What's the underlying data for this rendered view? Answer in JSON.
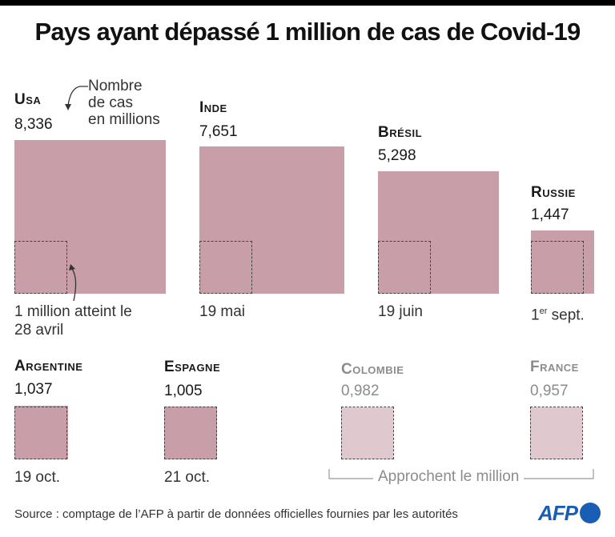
{
  "title": "Pays ayant dépassé 1 million de cas de Covid-19",
  "colors": {
    "box": "#c89ea8",
    "box_light": "#e0c9ce",
    "accent_logo": "#1a5db5"
  },
  "annotations": {
    "unit_note_line1": "Nombre",
    "unit_note_line2": "de cas",
    "unit_note_line3": "en millions",
    "million_note_line1": "1 million atteint le",
    "million_note_line2": "28 avril",
    "approaching": "Approchent le million"
  },
  "chart_data": {
    "type": "proportional-area-squares",
    "title": "Pays ayant dépassé 1 million de cas de Covid-19",
    "unit": "Nombre de cas en millions",
    "reference_value": 1,
    "countries": [
      {
        "name": "Usa",
        "value": 8.336,
        "label": "8,336",
        "date": "28 avril",
        "status": "passed"
      },
      {
        "name": "Inde",
        "value": 7.651,
        "label": "7,651",
        "date": "19 mai",
        "status": "passed"
      },
      {
        "name": "Brésil",
        "value": 5.298,
        "label": "5,298",
        "date": "19 juin",
        "status": "passed"
      },
      {
        "name": "Russie",
        "value": 1.447,
        "label": "1,447",
        "date_prefix": "1",
        "date_sup": "er",
        "date_suffix": " sept.",
        "status": "passed"
      },
      {
        "name": "Argentine",
        "value": 1.037,
        "label": "1,037",
        "date": "19 oct.",
        "status": "passed"
      },
      {
        "name": "Espagne",
        "value": 1.005,
        "label": "1,005",
        "date": "21 oct.",
        "status": "passed"
      },
      {
        "name": "Colombie",
        "value": 0.982,
        "label": "0,982",
        "status": "approaching"
      },
      {
        "name": "France",
        "value": 0.957,
        "label": "0,957",
        "status": "approaching"
      }
    ]
  },
  "footer": {
    "source": "Source : comptage de l’AFP à partir de données officielles fournies par les autorités",
    "logo": "AFP"
  }
}
